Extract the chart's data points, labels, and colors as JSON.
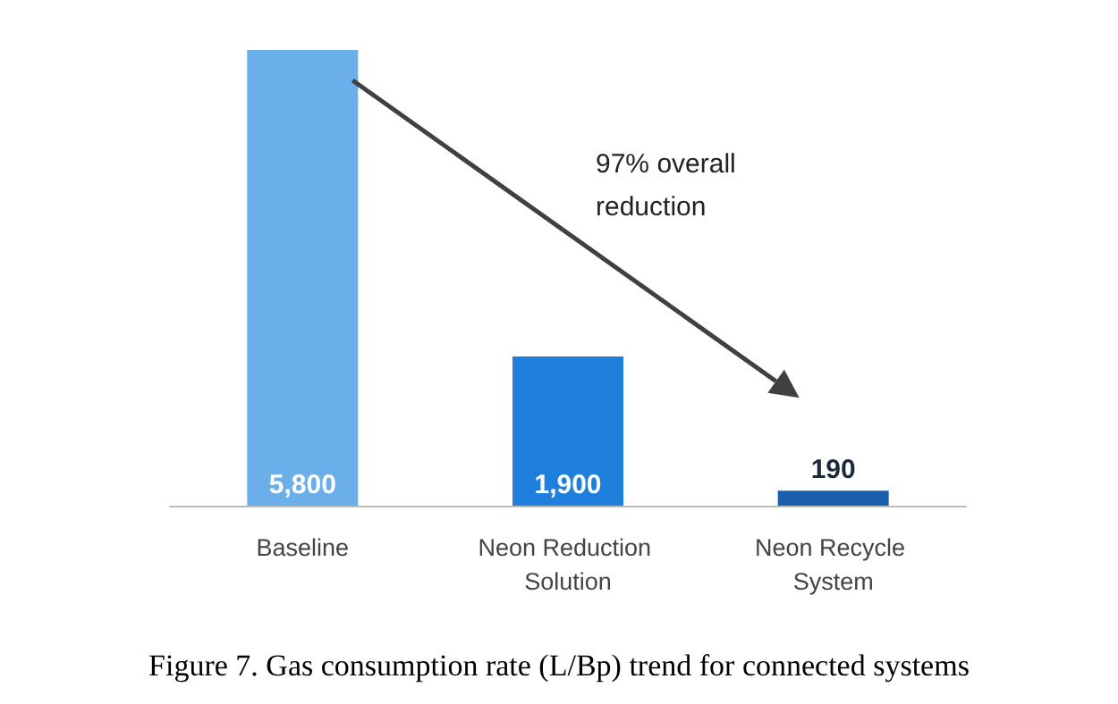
{
  "chart_data": {
    "type": "bar",
    "title": "Figure 7. Gas consumption rate (L/Bp) trend for connected systems",
    "categories": [
      "Baseline",
      "Neon Reduction Solution",
      "Neon Recycle System"
    ],
    "values": [
      5800,
      1900,
      190
    ],
    "colors": [
      "#6aaeea",
      "#1f7fdc",
      "#1a5fae"
    ],
    "value_labels": [
      "5,800",
      "1,900",
      "190"
    ],
    "annotations": [
      "97% overall reduction"
    ]
  }
}
